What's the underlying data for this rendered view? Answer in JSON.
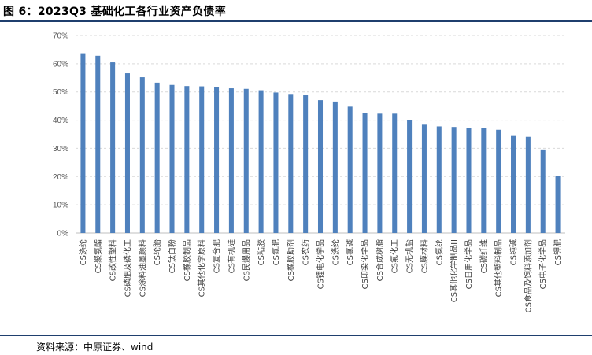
{
  "header": {
    "title": "图 6：2023Q3 基础化工各行业资产负债率"
  },
  "footer": {
    "source": "资料来源：中原证券、wind"
  },
  "colors": {
    "bar": "#4f81bd",
    "grid": "#d9d9d9",
    "axis": "#bfbfbf",
    "rule": "#1f3f6e"
  },
  "chart_data": {
    "type": "bar",
    "categories": [
      "CS涤纶",
      "CS聚氨酯",
      "CS改性塑料",
      "CS磷肥及磷化工",
      "CS涂料油墨颜料",
      "CS轮胎",
      "CS钛白粉",
      "CS橡胶制品",
      "CS其他化学原料",
      "CS复合肥",
      "CS有机硅",
      "CS民爆用品",
      "CS粘胶",
      "CS氮肥",
      "CS橡胶助剂",
      "CS农药",
      "CS锂电化学品",
      "CS涤纶",
      "CS氯碱",
      "CS印染化学品",
      "CS合成树脂",
      "CS氟化工",
      "CS无机盐",
      "CS膜材料",
      "CS氨纶",
      "CS其他化学制品Ⅲ",
      "CS日用化学品",
      "CS碳纤维",
      "CS其他塑料制品",
      "CS纯碱",
      "CS食品及饲料添加剂",
      "CS电子化学品",
      "CS钾肥"
    ],
    "values": [
      63.7,
      62.8,
      60.5,
      56.6,
      55.2,
      53.3,
      52.5,
      52.1,
      52.0,
      51.8,
      51.3,
      51.1,
      50.6,
      49.8,
      49.0,
      48.8,
      47.1,
      46.6,
      44.8,
      42.4,
      42.3,
      42.3,
      40.0,
      38.4,
      37.8,
      37.6,
      37.1,
      37.1,
      36.6,
      34.4,
      34.1,
      29.6,
      20.2
    ],
    "title": "2023Q3 基础化工各行业资产负债率",
    "xlabel": "",
    "ylabel": "",
    "ylim": [
      0,
      70
    ],
    "yticks": [
      "0%",
      "10%",
      "20%",
      "30%",
      "40%",
      "50%",
      "60%",
      "70%"
    ],
    "grid": true,
    "legend": "none"
  }
}
